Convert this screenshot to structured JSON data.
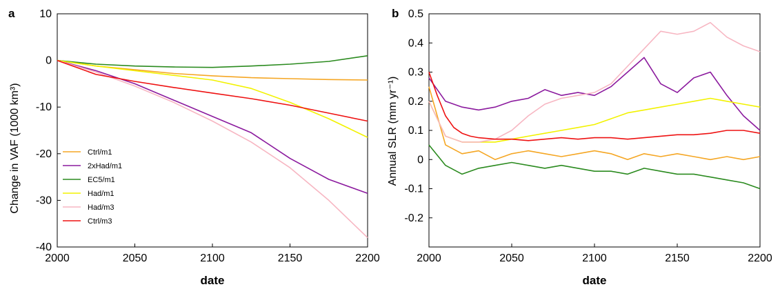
{
  "chart_data": [
    {
      "panel": "a",
      "type": "line",
      "title": "",
      "xlabel": "date",
      "ylabel": "Change in VAF (1000 km³)",
      "xlim": [
        2000,
        2200
      ],
      "ylim": [
        -40,
        10
      ],
      "xticks": [
        2000,
        2050,
        2100,
        2150,
        2200
      ],
      "yticks": [
        10,
        0,
        -10,
        -20,
        -30,
        -40
      ],
      "grid": false,
      "legend_position": "bottom-left",
      "series": [
        {
          "name": "Ctrl/m1",
          "color": "#f5a623",
          "x": [
            2000,
            2025,
            2050,
            2075,
            2100,
            2125,
            2150,
            2175,
            2200
          ],
          "y": [
            0,
            -1.2,
            -2.0,
            -2.8,
            -3.3,
            -3.7,
            -3.9,
            -4.1,
            -4.2
          ]
        },
        {
          "name": "2xHad/m1",
          "color": "#8b1a9e",
          "x": [
            2000,
            2025,
            2050,
            2075,
            2100,
            2125,
            2150,
            2175,
            2200
          ],
          "y": [
            0,
            -2.2,
            -5.0,
            -8.5,
            -12.0,
            -15.5,
            -21.0,
            -25.5,
            -28.5
          ]
        },
        {
          "name": "EC5/m1",
          "color": "#2a8a1e",
          "x": [
            2000,
            2025,
            2050,
            2075,
            2100,
            2125,
            2150,
            2175,
            2200
          ],
          "y": [
            0,
            -0.8,
            -1.2,
            -1.4,
            -1.5,
            -1.2,
            -0.8,
            -0.2,
            1.0
          ]
        },
        {
          "name": "Had/m1",
          "color": "#f2f200",
          "x": [
            2000,
            2025,
            2050,
            2075,
            2100,
            2125,
            2150,
            2175,
            2200
          ],
          "y": [
            0,
            -1.2,
            -2.2,
            -3.2,
            -4.2,
            -6.0,
            -9.0,
            -12.5,
            -16.5
          ]
        },
        {
          "name": "Had/m3",
          "color": "#f7b6c2",
          "x": [
            2000,
            2025,
            2050,
            2075,
            2100,
            2125,
            2150,
            2175,
            2200
          ],
          "y": [
            0,
            -2.5,
            -5.5,
            -9.0,
            -13.0,
            -17.5,
            -23.0,
            -30.0,
            -38.0
          ]
        },
        {
          "name": "Ctrl/m3",
          "color": "#ee1111",
          "x": [
            2000,
            2025,
            2050,
            2075,
            2100,
            2125,
            2150,
            2175,
            2200
          ],
          "y": [
            0,
            -3.0,
            -4.5,
            -5.8,
            -7.0,
            -8.2,
            -9.6,
            -11.3,
            -13.0
          ]
        }
      ]
    },
    {
      "panel": "b",
      "type": "line",
      "title": "",
      "xlabel": "date",
      "ylabel": "Annual SLR (mm yr⁻¹)",
      "xlim": [
        2000,
        2200
      ],
      "ylim": [
        -0.3,
        0.5
      ],
      "xticks": [
        2000,
        2050,
        2100,
        2150,
        2200
      ],
      "yticks": [
        0.5,
        0.4,
        0.3,
        0.2,
        0.1,
        0,
        -0.1,
        -0.2
      ],
      "grid": false,
      "series": [
        {
          "name": "Ctrl/m1",
          "color": "#f5a623",
          "x": [
            2000,
            2010,
            2020,
            2030,
            2040,
            2050,
            2060,
            2070,
            2080,
            2090,
            2100,
            2110,
            2120,
            2130,
            2140,
            2150,
            2160,
            2170,
            2180,
            2190,
            2200
          ],
          "y": [
            0.25,
            0.05,
            0.02,
            0.03,
            0.0,
            0.02,
            0.03,
            0.02,
            0.01,
            0.02,
            0.03,
            0.02,
            0.0,
            0.02,
            0.01,
            0.02,
            0.01,
            0.0,
            0.01,
            0.0,
            0.01
          ]
        },
        {
          "name": "2xHad/m1",
          "color": "#8b1a9e",
          "x": [
            2000,
            2010,
            2020,
            2030,
            2040,
            2050,
            2060,
            2070,
            2080,
            2090,
            2100,
            2110,
            2120,
            2130,
            2140,
            2150,
            2160,
            2170,
            2180,
            2190,
            2200
          ],
          "y": [
            0.28,
            0.2,
            0.18,
            0.17,
            0.18,
            0.2,
            0.21,
            0.24,
            0.22,
            0.23,
            0.22,
            0.25,
            0.3,
            0.35,
            0.26,
            0.23,
            0.28,
            0.3,
            0.22,
            0.15,
            0.1
          ]
        },
        {
          "name": "EC5/m1",
          "color": "#2a8a1e",
          "x": [
            2000,
            2010,
            2020,
            2030,
            2040,
            2050,
            2060,
            2070,
            2080,
            2090,
            2100,
            2110,
            2120,
            2130,
            2140,
            2150,
            2160,
            2170,
            2180,
            2190,
            2200
          ],
          "y": [
            0.05,
            -0.02,
            -0.05,
            -0.03,
            -0.02,
            -0.01,
            -0.02,
            -0.03,
            -0.02,
            -0.03,
            -0.04,
            -0.04,
            -0.05,
            -0.03,
            -0.04,
            -0.05,
            -0.05,
            -0.06,
            -0.07,
            -0.08,
            -0.1
          ]
        },
        {
          "name": "Had/m1",
          "color": "#f2f200",
          "x": [
            2000,
            2010,
            2020,
            2030,
            2040,
            2050,
            2060,
            2070,
            2080,
            2090,
            2100,
            2110,
            2120,
            2130,
            2140,
            2150,
            2160,
            2170,
            2180,
            2190,
            2200
          ],
          "y": [
            0.2,
            0.08,
            0.06,
            0.06,
            0.06,
            0.07,
            0.08,
            0.09,
            0.1,
            0.11,
            0.12,
            0.14,
            0.16,
            0.17,
            0.18,
            0.19,
            0.2,
            0.21,
            0.2,
            0.19,
            0.18
          ]
        },
        {
          "name": "Had/m3",
          "color": "#f7b6c2",
          "x": [
            2000,
            2010,
            2020,
            2030,
            2040,
            2050,
            2060,
            2070,
            2080,
            2090,
            2100,
            2110,
            2120,
            2130,
            2140,
            2150,
            2160,
            2170,
            2180,
            2190,
            2200
          ],
          "y": [
            0.2,
            0.08,
            0.06,
            0.06,
            0.07,
            0.1,
            0.15,
            0.19,
            0.21,
            0.22,
            0.23,
            0.26,
            0.32,
            0.38,
            0.44,
            0.43,
            0.44,
            0.47,
            0.42,
            0.39,
            0.37
          ]
        },
        {
          "name": "Ctrl/m3",
          "color": "#ee1111",
          "x": [
            2000,
            2005,
            2010,
            2015,
            2020,
            2025,
            2030,
            2040,
            2050,
            2060,
            2070,
            2080,
            2090,
            2100,
            2110,
            2120,
            2130,
            2140,
            2150,
            2160,
            2170,
            2180,
            2190,
            2200
          ],
          "y": [
            0.3,
            0.22,
            0.15,
            0.11,
            0.09,
            0.08,
            0.075,
            0.07,
            0.07,
            0.065,
            0.07,
            0.075,
            0.07,
            0.075,
            0.075,
            0.07,
            0.075,
            0.08,
            0.085,
            0.085,
            0.09,
            0.1,
            0.1,
            0.09
          ]
        }
      ]
    }
  ]
}
